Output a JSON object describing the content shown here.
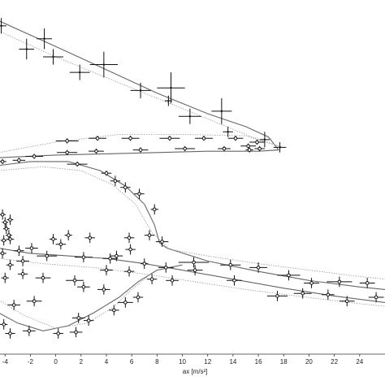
{
  "chart_data": {
    "type": "scatter",
    "title": "",
    "xlabel": "ax [m/s²]",
    "ylabel": "",
    "xlim": [
      -4.4,
      26
    ],
    "ylim": [
      -2.5,
      11.2
    ],
    "grid": false,
    "legend": "none",
    "x_ticks": [
      -4,
      -2,
      0,
      2,
      4,
      6,
      8,
      10,
      12,
      14,
      16,
      18,
      20,
      22,
      24
    ],
    "colors": {
      "points": "#111111",
      "curve": "#666666",
      "dotted_curve": "#999999"
    },
    "series": [
      {
        "marker": "plus-with-errorbars",
        "points": [
          {
            "x": -4.3,
            "y": 10.2,
            "ex": 0.4,
            "ey": 0.3
          },
          {
            "x": -0.9,
            "y": 9.7,
            "ex": 0.6,
            "ey": 0.4
          },
          {
            "x": -2.3,
            "y": 9.3,
            "ex": 0.6,
            "ey": 0.4
          },
          {
            "x": -0.2,
            "y": 9.0,
            "ex": 0.8,
            "ey": 0.3
          },
          {
            "x": 1.9,
            "y": 8.4,
            "ex": 0.8,
            "ey": 0.3
          },
          {
            "x": 3.8,
            "y": 8.7,
            "ex": 1.1,
            "ey": 0.5
          },
          {
            "x": 6.7,
            "y": 7.7,
            "ex": 0.8,
            "ey": 0.3
          },
          {
            "x": 9.1,
            "y": 7.8,
            "ex": 1.1,
            "ey": 0.6
          },
          {
            "x": 8.9,
            "y": 7.3,
            "ex": 0.3,
            "ey": 0.2
          },
          {
            "x": 10.6,
            "y": 6.7,
            "ex": 0.9,
            "ey": 0.3
          },
          {
            "x": 13.1,
            "y": 6.9,
            "ex": 0.8,
            "ey": 0.5
          },
          {
            "x": 13.6,
            "y": 6.1,
            "ex": 0.4,
            "ey": 0.2
          },
          {
            "x": 16.5,
            "y": 5.8,
            "ex": 0.4,
            "ey": 0.3
          },
          {
            "x": 17.7,
            "y": 5.5,
            "ex": 0.5,
            "ey": 0.2
          }
        ]
      },
      {
        "marker": "circle-with-errorbars",
        "points": [
          {
            "x": 0.9,
            "y": 5.75,
            "ex": 0.9,
            "ey": 0.1
          },
          {
            "x": 3.3,
            "y": 5.85,
            "ex": 0.7,
            "ey": 0.1
          },
          {
            "x": 5.9,
            "y": 5.85,
            "ex": 0.7,
            "ey": 0.1
          },
          {
            "x": 9.0,
            "y": 5.85,
            "ex": 0.8,
            "ey": 0.1
          },
          {
            "x": 11.7,
            "y": 5.85,
            "ex": 0.7,
            "ey": 0.1
          },
          {
            "x": 14.2,
            "y": 5.85,
            "ex": 0.6,
            "ey": 0.1
          },
          {
            "x": 15.9,
            "y": 5.7,
            "ex": 0.6,
            "ey": 0.1
          },
          {
            "x": 15.2,
            "y": 5.55,
            "ex": 0.6,
            "ey": 0.1
          },
          {
            "x": 16.1,
            "y": 5.45,
            "ex": 0.4,
            "ey": 0.1
          },
          {
            "x": 15.3,
            "y": 5.4,
            "ex": 0.3,
            "ey": 0.1
          },
          {
            "x": 13.3,
            "y": 5.45,
            "ex": 0.5,
            "ey": 0.1
          },
          {
            "x": 10.2,
            "y": 5.45,
            "ex": 0.8,
            "ey": 0.1
          },
          {
            "x": 6.7,
            "y": 5.4,
            "ex": 0.6,
            "ey": 0.1
          },
          {
            "x": 3.2,
            "y": 5.35,
            "ex": 0.6,
            "ey": 0.1
          },
          {
            "x": 0.9,
            "y": 5.3,
            "ex": 0.8,
            "ey": 0.1
          },
          {
            "x": -1.7,
            "y": 5.15,
            "ex": 0.7,
            "ey": 0.1
          },
          {
            "x": -2.9,
            "y": 5.0,
            "ex": 0.5,
            "ey": 0.1
          },
          {
            "x": -4.2,
            "y": 4.95,
            "ex": 0.3,
            "ey": 0.1
          },
          {
            "x": 1.7,
            "y": 4.85,
            "ex": 0.8,
            "ey": 0.1
          },
          {
            "x": 4.0,
            "y": 4.5,
            "ex": 0.4,
            "ey": 0.1
          },
          {
            "x": 4.7,
            "y": 4.2,
            "ex": 0.4,
            "ey": 0.2
          },
          {
            "x": 5.5,
            "y": 3.95,
            "ex": 0.4,
            "ey": 0.2
          },
          {
            "x": 6.6,
            "y": 3.7,
            "ex": 0.4,
            "ey": 0.2
          },
          {
            "x": 7.8,
            "y": 3.1,
            "ex": 0.3,
            "ey": 0.2
          },
          {
            "x": 7.4,
            "y": 2.1,
            "ex": 0.4,
            "ey": 0.2
          },
          {
            "x": 8.4,
            "y": 1.85,
            "ex": 0.5,
            "ey": 0.2
          },
          {
            "x": 5.8,
            "y": 2.0,
            "ex": 0.4,
            "ey": 0.2
          },
          {
            "x": 4.8,
            "y": 1.3,
            "ex": 0.5,
            "ey": 0.2
          },
          {
            "x": 5.9,
            "y": 1.55,
            "ex": 0.4,
            "ey": 0.2
          },
          {
            "x": 2.7,
            "y": 2.0,
            "ex": 0.4,
            "ey": 0.2
          },
          {
            "x": 1.0,
            "y": 2.1,
            "ex": 0.3,
            "ey": 0.2
          },
          {
            "x": 0.4,
            "y": 1.75,
            "ex": 0.4,
            "ey": 0.2
          },
          {
            "x": -0.2,
            "y": 1.95,
            "ex": 0.3,
            "ey": 0.2
          },
          {
            "x": -1.9,
            "y": 1.6,
            "ex": 0.5,
            "ey": 0.2
          },
          {
            "x": -2.9,
            "y": 1.5,
            "ex": 0.4,
            "ey": 0.2
          },
          {
            "x": -3.6,
            "y": 1.95,
            "ex": 0.3,
            "ey": 0.2
          },
          {
            "x": -4.2,
            "y": 1.4,
            "ex": 0.3,
            "ey": 0.2
          },
          {
            "x": -3.6,
            "y": 0.95,
            "ex": 0.3,
            "ey": 0.2
          },
          {
            "x": -2.6,
            "y": 0.6,
            "ex": 0.4,
            "ey": 0.2
          },
          {
            "x": -1.0,
            "y": 0.45,
            "ex": 0.6,
            "ey": 0.2
          },
          {
            "x": 1.5,
            "y": 0.35,
            "ex": 0.7,
            "ey": 0.2
          },
          {
            "x": 2.2,
            "y": 0.1,
            "ex": 0.5,
            "ey": 0.2
          },
          {
            "x": 3.8,
            "y": 0.0,
            "ex": 0.5,
            "ey": 0.2
          },
          {
            "x": 5.5,
            "y": -0.5,
            "ex": 0.6,
            "ey": 0.2
          },
          {
            "x": 4.6,
            "y": -0.8,
            "ex": 0.4,
            "ey": 0.2
          },
          {
            "x": 2.6,
            "y": -1.2,
            "ex": 0.4,
            "ey": 0.2
          },
          {
            "x": 1.6,
            "y": -1.65,
            "ex": 0.5,
            "ey": 0.2
          },
          {
            "x": 0.2,
            "y": -1.7,
            "ex": 0.4,
            "ey": 0.2
          },
          {
            "x": -2.1,
            "y": -1.6,
            "ex": 0.5,
            "ey": 0.2
          },
          {
            "x": -3.6,
            "y": -1.7,
            "ex": 0.4,
            "ey": 0.2
          },
          {
            "x": -4.1,
            "y": -1.35,
            "ex": 0.3,
            "ey": 0.2
          },
          {
            "x": -3.3,
            "y": -0.6,
            "ex": 0.5,
            "ey": 0.2
          },
          {
            "x": -1.7,
            "y": -0.45,
            "ex": 0.6,
            "ey": 0.2
          },
          {
            "x": 1.8,
            "y": -1.1,
            "ex": 0.5,
            "ey": 0.2
          },
          {
            "x": 6.5,
            "y": -0.3,
            "ex": 0.4,
            "ey": 0.2
          },
          {
            "x": 7.6,
            "y": 0.4,
            "ex": 0.4,
            "ey": 0.2
          },
          {
            "x": 5.8,
            "y": 0.7,
            "ex": 0.4,
            "ey": 0.2
          },
          {
            "x": 4.0,
            "y": 0.75,
            "ex": 0.5,
            "ey": 0.2
          },
          {
            "x": 8.7,
            "y": 0.85,
            "ex": 0.6,
            "ey": 0.2
          },
          {
            "x": 10.9,
            "y": 1.05,
            "ex": 1.2,
            "ey": 0.2
          },
          {
            "x": 13.8,
            "y": 0.95,
            "ex": 0.8,
            "ey": 0.2
          },
          {
            "x": 16.0,
            "y": 0.85,
            "ex": 0.7,
            "ey": 0.2
          },
          {
            "x": 18.4,
            "y": 0.55,
            "ex": 0.9,
            "ey": 0.2
          },
          {
            "x": 20.2,
            "y": 0.25,
            "ex": 0.6,
            "ey": 0.2
          },
          {
            "x": 22.4,
            "y": 0.3,
            "ex": 1.0,
            "ey": 0.2
          },
          {
            "x": 24.6,
            "y": 0.25,
            "ex": 0.6,
            "ey": 0.2
          },
          {
            "x": 25.3,
            "y": -0.3,
            "ex": 0.6,
            "ey": 0.2
          },
          {
            "x": 23.0,
            "y": -0.45,
            "ex": 0.6,
            "ey": 0.2
          },
          {
            "x": 21.5,
            "y": -0.2,
            "ex": 0.5,
            "ey": 0.2
          },
          {
            "x": 19.5,
            "y": -0.15,
            "ex": 0.7,
            "ey": 0.2
          },
          {
            "x": 17.5,
            "y": -0.25,
            "ex": 0.8,
            "ey": 0.2
          },
          {
            "x": 14.1,
            "y": 0.35,
            "ex": 0.6,
            "ey": 0.2
          },
          {
            "x": 11.0,
            "y": 0.75,
            "ex": 0.6,
            "ey": 0.2
          },
          {
            "x": 9.2,
            "y": 0.35,
            "ex": 0.5,
            "ey": 0.2
          },
          {
            "x": 7.0,
            "y": 1.0,
            "ex": 0.3,
            "ey": 0.2
          },
          {
            "x": 4.3,
            "y": 1.2,
            "ex": 0.6,
            "ey": 0.2
          },
          {
            "x": 2.2,
            "y": 1.25,
            "ex": 0.7,
            "ey": 0.2
          },
          {
            "x": -0.7,
            "y": 1.3,
            "ex": 0.8,
            "ey": 0.2
          },
          {
            "x": -2.6,
            "y": 1.1,
            "ex": 0.5,
            "ey": 0.2
          },
          {
            "x": -4.0,
            "y": 0.45,
            "ex": 0.3,
            "ey": 0.2
          },
          {
            "x": -4.0,
            "y": 2.6,
            "ex": 0.25,
            "ey": 0.2
          },
          {
            "x": -3.6,
            "y": 2.7,
            "ex": 0.25,
            "ey": 0.2
          },
          {
            "x": -4.2,
            "y": 2.9,
            "ex": 0.25,
            "ey": 0.2
          },
          {
            "x": -3.9,
            "y": 2.35,
            "ex": 0.25,
            "ey": 0.2
          },
          {
            "x": -3.7,
            "y": 2.1,
            "ex": 0.25,
            "ey": 0.2
          },
          {
            "x": -4.1,
            "y": 1.9,
            "ex": 0.25,
            "ey": 0.2
          }
        ]
      }
    ],
    "curves": [
      {
        "style": "solid",
        "points": [
          [
            -4.5,
            10.4
          ],
          [
            0,
            9.4
          ],
          [
            4,
            8.5
          ],
          [
            8,
            7.6
          ],
          [
            12,
            6.8
          ],
          [
            15,
            6.3
          ],
          [
            16.8,
            5.9
          ],
          [
            17.6,
            5.4
          ],
          [
            16,
            5.35
          ],
          [
            12,
            5.35
          ],
          [
            8,
            5.3
          ],
          [
            4,
            5.25
          ],
          [
            0,
            5.2
          ],
          [
            -4.5,
            5.1
          ]
        ]
      },
      {
        "style": "dotted",
        "points": [
          [
            -4.5,
            10.0
          ],
          [
            0,
            9.0
          ],
          [
            4,
            8.2
          ],
          [
            8,
            7.4
          ],
          [
            12,
            6.6
          ],
          [
            15.5,
            5.9
          ],
          [
            17.9,
            5.5
          ],
          [
            15,
            5.95
          ],
          [
            10,
            6.0
          ],
          [
            5,
            6.0
          ],
          [
            0,
            5.7
          ],
          [
            -4.5,
            5.3
          ]
        ]
      },
      {
        "style": "solid",
        "points": [
          [
            -4.5,
            4.8
          ],
          [
            -2,
            4.95
          ],
          [
            1,
            4.95
          ],
          [
            3.5,
            4.6
          ],
          [
            5.5,
            4.0
          ],
          [
            7,
            3.3
          ],
          [
            7.8,
            2.5
          ],
          [
            8.2,
            1.8
          ],
          [
            8.8,
            1.6
          ],
          [
            12,
            1.1
          ],
          [
            16,
            0.7
          ],
          [
            20,
            0.35
          ],
          [
            24,
            0.1
          ],
          [
            26,
            0.0
          ]
        ]
      },
      {
        "style": "dotted",
        "points": [
          [
            -4.5,
            4.6
          ],
          [
            -1,
            4.75
          ],
          [
            2,
            4.6
          ],
          [
            4.5,
            4.05
          ],
          [
            6.3,
            3.3
          ],
          [
            7.6,
            2.2
          ],
          [
            9,
            1.55
          ],
          [
            12,
            1.3
          ],
          [
            16,
            1.0
          ],
          [
            20,
            0.75
          ],
          [
            24,
            0.5
          ],
          [
            26,
            0.4
          ]
        ]
      },
      {
        "style": "solid",
        "points": [
          [
            -4.5,
            1.6
          ],
          [
            -2,
            1.4
          ],
          [
            1,
            1.3
          ],
          [
            4,
            1.2
          ],
          [
            7,
            1.0
          ],
          [
            10,
            0.75
          ],
          [
            14,
            0.4
          ],
          [
            18,
            0.05
          ],
          [
            22,
            -0.25
          ],
          [
            26,
            -0.5
          ]
        ]
      },
      {
        "style": "dotted",
        "points": [
          [
            -4.5,
            1.2
          ],
          [
            -1,
            1.0
          ],
          [
            3,
            0.85
          ],
          [
            7,
            0.6
          ],
          [
            11,
            0.3
          ],
          [
            15,
            0.0
          ],
          [
            19,
            -0.25
          ],
          [
            24,
            -0.55
          ],
          [
            26,
            -0.65
          ]
        ]
      },
      {
        "style": "solid",
        "points": [
          [
            -4.5,
            -0.9
          ],
          [
            -3,
            -1.3
          ],
          [
            -1,
            -1.6
          ],
          [
            1,
            -1.4
          ],
          [
            3,
            -0.9
          ],
          [
            5,
            -0.3
          ],
          [
            6.5,
            0.3
          ],
          [
            8,
            0.75
          ],
          [
            10,
            0.95
          ]
        ]
      },
      {
        "style": "dotted",
        "points": [
          [
            -4.5,
            -0.4
          ],
          [
            -2.5,
            -1.0
          ],
          [
            0,
            -1.5
          ],
          [
            2.5,
            -1.3
          ],
          [
            4.5,
            -0.7
          ],
          [
            6,
            0.0
          ],
          [
            7.5,
            0.6
          ]
        ]
      }
    ]
  }
}
